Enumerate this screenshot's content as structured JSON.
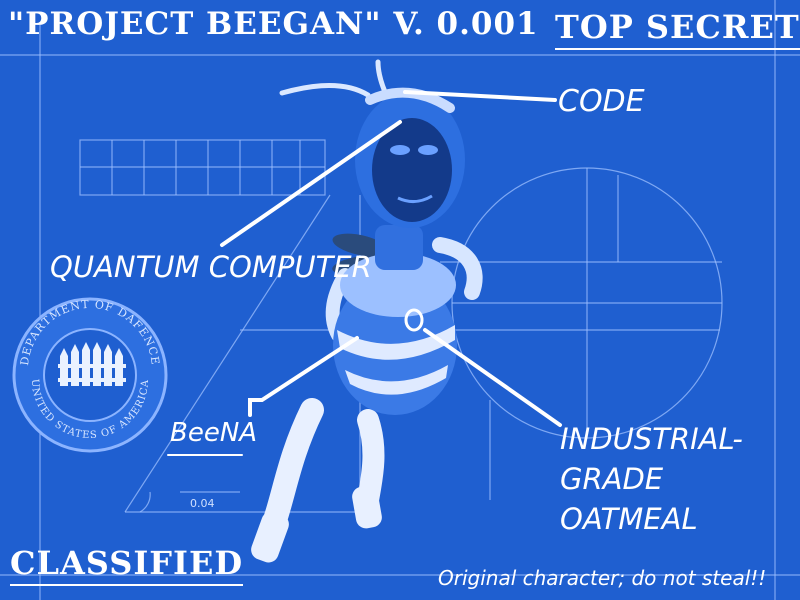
{
  "header": {
    "title": "\"PROJECT BEEGAN\" V. 0.001",
    "stamp": "TOP SECRET"
  },
  "labels": {
    "code": "CODE",
    "quantum_computer": "QUANTUM COMPUTER",
    "beena": "BeeNA",
    "oatmeal_line1": "INDUSTRIAL-",
    "oatmeal_line2": "GRADE",
    "oatmeal_line3": "OATMEAL",
    "dimension": "0.04"
  },
  "seal": {
    "top_text": "DEPARTMENT OF DAFENCE",
    "bottom_text": "UNITED STATES OF AMERICA"
  },
  "footer": {
    "classified": "CLASSIFIED",
    "note": "Original character; do not steal!!"
  },
  "colors": {
    "background": "#1f5fd0",
    "line": "#ffffff",
    "body": "#3b7ae6"
  }
}
